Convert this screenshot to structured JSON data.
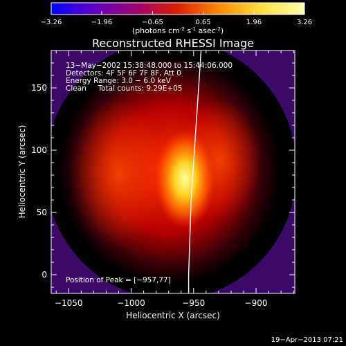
{
  "colorbar": {
    "ticks": [
      "-3.26",
      "-1.96",
      "-0.65",
      "0.65",
      "1.96",
      "3.26"
    ],
    "range": [
      -3.26,
      3.26
    ],
    "units_prefix": "(photons cm",
    "units_exp1": "-2",
    "units_mid": " s",
    "units_exp2": "-1",
    "units_mid2": " asec",
    "units_exp3": "-2",
    "units_suffix": ")",
    "stops": [
      "#0000ff",
      "#6000c8",
      "#a00070",
      "#dc2000",
      "#ff8c00",
      "#ffe040",
      "#ffffb0"
    ]
  },
  "chart_data": {
    "type": "heatmap",
    "title": "Reconstructed RHESSI Image",
    "xlabel": "Heliocentric X (arcsec)",
    "ylabel": "Heliocentric Y (arcsec)",
    "xlim": [
      -1064,
      -869
    ],
    "ylim": [
      -15,
      180
    ],
    "xticks": [
      -1050,
      -1000,
      -950,
      -900
    ],
    "xtick_labels": [
      "−1050",
      "−1000",
      "−950",
      "−900"
    ],
    "yticks": [
      0,
      50,
      100,
      150
    ],
    "ytick_labels": [
      "0",
      "50",
      "100",
      "150"
    ],
    "peak": [
      -957,
      77
    ],
    "info_lines": [
      "13−May−2002 15:38:48.000 to 15:44:06.000",
      "Detectors: 4F 5F 6F 7F 8F, Att 0",
      "Energy Range: 3.0 − 6.0 keV",
      "Clean     Total counts: 9.29E+05"
    ],
    "peak_label": "Position of Peak = [−957,77]",
    "limb_curve": [
      [
        -944,
        180
      ],
      [
        -946,
        150
      ],
      [
        -948,
        120
      ],
      [
        -950,
        90
      ],
      [
        -952,
        60
      ],
      [
        -953,
        30
      ],
      [
        -954,
        0
      ],
      [
        -954,
        -15
      ]
    ]
  },
  "timestamp": "19−Apr−2013 07:21"
}
